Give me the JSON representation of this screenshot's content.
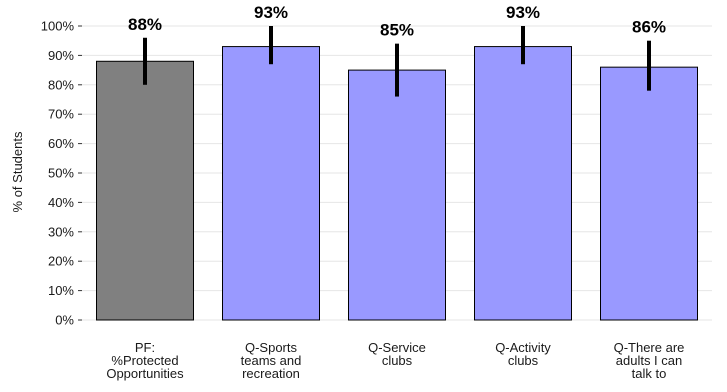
{
  "chart_data": {
    "type": "bar",
    "title": "",
    "xlabel": "",
    "ylabel": "% of Students",
    "ylim": [
      0,
      100
    ],
    "y_ticks": [
      "0%",
      "10%",
      "20%",
      "30%",
      "40%",
      "50%",
      "60%",
      "70%",
      "80%",
      "90%",
      "100%"
    ],
    "y_tick_values": [
      0,
      10,
      20,
      30,
      40,
      50,
      60,
      70,
      80,
      90,
      100
    ],
    "grid": true,
    "categories": [
      [
        "PF:",
        "%Protected",
        "Opportunities"
      ],
      [
        "Q-Sports",
        "teams and",
        "recreation"
      ],
      [
        "Q-Service",
        "clubs"
      ],
      [
        "Q-Activity",
        "clubs"
      ],
      [
        "Q-There are",
        "adults I can",
        "talk to"
      ]
    ],
    "values": [
      88,
      93,
      85,
      93,
      86
    ],
    "value_labels": [
      "88%",
      "93%",
      "85%",
      "93%",
      "86%"
    ],
    "error_low": [
      80,
      87,
      76,
      87,
      78
    ],
    "error_high": [
      96,
      100,
      94,
      100,
      95
    ],
    "colors": [
      "#808080",
      "#9999ff",
      "#9999ff",
      "#9999ff",
      "#9999ff"
    ],
    "errorbar_color": "#000000",
    "grid_color": "#e6e6e6"
  }
}
